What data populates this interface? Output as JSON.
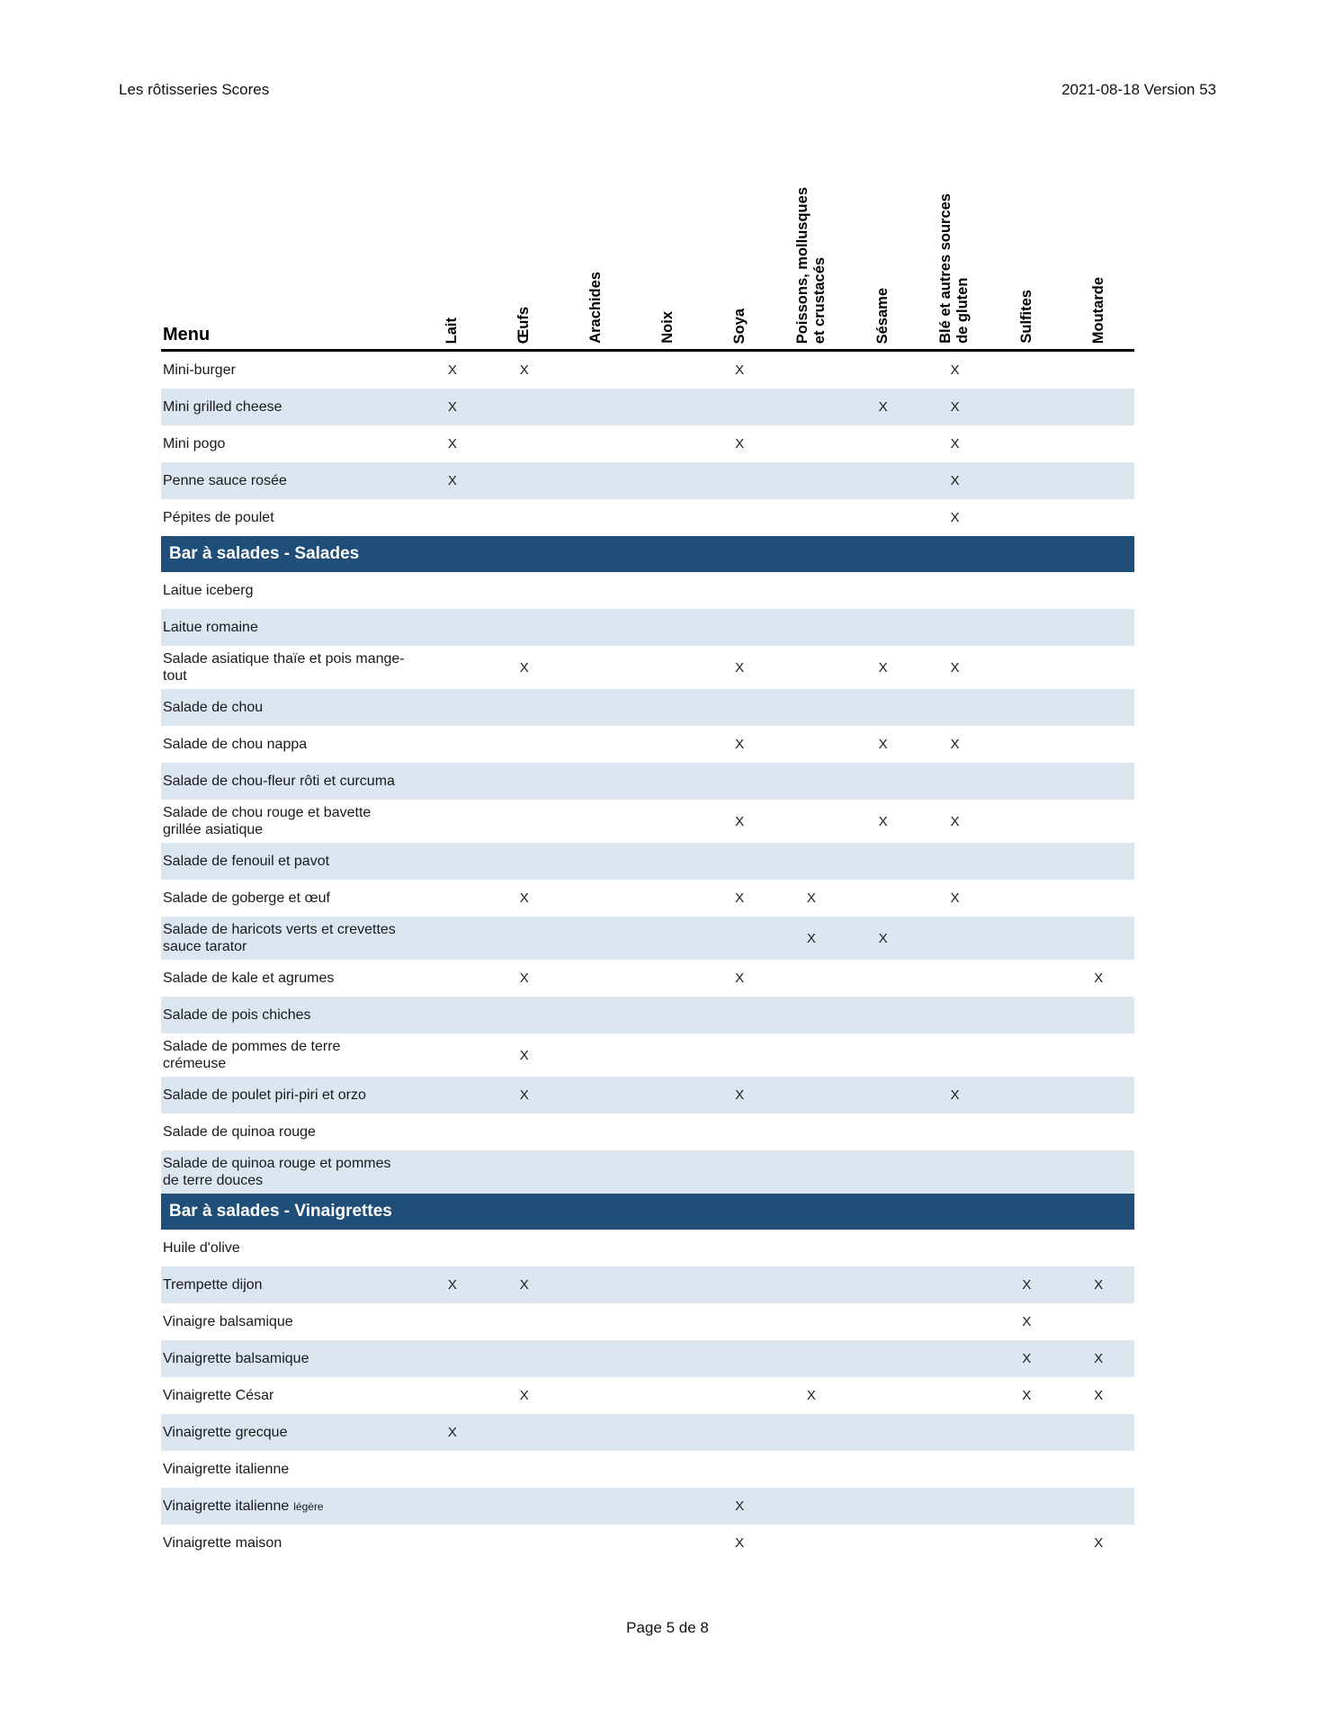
{
  "header": {
    "title": "Les rôtisseries Scores",
    "version": "2021-08-18 Version 53"
  },
  "footer": {
    "text": "Page 5 de 8"
  },
  "table": {
    "menu_label": "Menu",
    "mark": "X",
    "colors": {
      "section_header_bg": "#1F4E79",
      "section_header_text": "#FFFFFF",
      "row_shaded_bg": "#DCE6F1",
      "header_rule": "#000000"
    },
    "columns": [
      {
        "id": "lait",
        "label": "Lait"
      },
      {
        "id": "oeufs",
        "label": "Œufs"
      },
      {
        "id": "arachides",
        "label": "Arachides"
      },
      {
        "id": "noix",
        "label": "Noix"
      },
      {
        "id": "soya",
        "label": "Soya"
      },
      {
        "id": "poissons",
        "label": "Poissons, mollusques\net crustacés"
      },
      {
        "id": "sesame",
        "label": "Sésame"
      },
      {
        "id": "ble",
        "label": "Blé et autres sources\nde gluten"
      },
      {
        "id": "sulfites",
        "label": "Sulfites"
      },
      {
        "id": "moutarde",
        "label": "Moutarde"
      }
    ],
    "sections": [
      {
        "title": null,
        "rows": [
          {
            "label": "Mini-burger",
            "marks": {
              "lait": "X",
              "oeufs": "X",
              "soya": "X",
              "ble": "X"
            }
          },
          {
            "label": "Mini grilled cheese",
            "marks": {
              "lait": "X",
              "sesame": "X",
              "ble": "X"
            }
          },
          {
            "label": "Mini pogo",
            "marks": {
              "lait": "X",
              "soya": "X",
              "ble": "X"
            }
          },
          {
            "label": "Penne sauce rosée",
            "marks": {
              "lait": "X",
              "ble": "X"
            }
          },
          {
            "label": "Pépites de poulet",
            "marks": {
              "ble": "X"
            }
          }
        ]
      },
      {
        "title": "Bar à salades - Salades",
        "rows": [
          {
            "label": "Laitue iceberg",
            "marks": {}
          },
          {
            "label": "Laitue romaine",
            "marks": {}
          },
          {
            "label": "Salade asiatique thaïe et pois mange-tout",
            "marks": {
              "oeufs": "X",
              "soya": "X",
              "sesame": "X",
              "ble": "X"
            }
          },
          {
            "label": "Salade de chou",
            "marks": {}
          },
          {
            "label": "Salade de chou nappa",
            "marks": {
              "soya": "X",
              "sesame": "X",
              "ble": "X"
            }
          },
          {
            "label": "Salade de chou-fleur rôti et curcuma",
            "marks": {}
          },
          {
            "label": "Salade de chou rouge et bavette grillée asiatique",
            "marks": {
              "soya": "X",
              "sesame": "X",
              "ble": "X"
            }
          },
          {
            "label": "Salade de fenouil et pavot",
            "marks": {}
          },
          {
            "label": "Salade de goberge et œuf",
            "marks": {
              "oeufs": "X",
              "soya": "X",
              "poissons": "X",
              "ble": "X"
            }
          },
          {
            "label": "Salade de haricots verts et crevettes sauce tarator",
            "marks": {
              "poissons": "X",
              "sesame": "X"
            }
          },
          {
            "label": "Salade de kale et agrumes",
            "marks": {
              "oeufs": "X",
              "soya": "X",
              "moutarde": "X"
            }
          },
          {
            "label": "Salade de pois chiches",
            "marks": {}
          },
          {
            "label": "Salade de pommes de terre crémeuse",
            "marks": {
              "oeufs": "X"
            }
          },
          {
            "label": "Salade de poulet piri-piri et orzo",
            "marks": {
              "oeufs": "X",
              "soya": "X",
              "ble": "X"
            }
          },
          {
            "label": "Salade de quinoa rouge",
            "marks": {}
          },
          {
            "label": "Salade de quinoa rouge et pommes de terre douces",
            "marks": {}
          }
        ]
      },
      {
        "title": "Bar à salades - Vinaigrettes",
        "rows": [
          {
            "label": "Huile d'olive",
            "marks": {}
          },
          {
            "label": "Trempette dijon",
            "marks": {
              "lait": "X",
              "oeufs": "X",
              "sulfites": "X",
              "moutarde": "X"
            }
          },
          {
            "label": "Vinaigre balsamique",
            "marks": {
              "sulfites": "X"
            }
          },
          {
            "label": "Vinaigrette balsamique",
            "marks": {
              "sulfites": "X",
              "moutarde": "X"
            }
          },
          {
            "label": "Vinaigrette César",
            "marks": {
              "oeufs": "X",
              "poissons": "X",
              "sulfites": "X",
              "moutarde": "X"
            }
          },
          {
            "label": "Vinaigrette grecque",
            "marks": {
              "lait": "X"
            }
          },
          {
            "label": "Vinaigrette italienne",
            "marks": {}
          },
          {
            "label": "Vinaigrette italienne",
            "label_small": "légère",
            "marks": {
              "soya": "X"
            }
          },
          {
            "label": "Vinaigrette maison",
            "marks": {
              "soya": "X",
              "moutarde": "X"
            }
          }
        ]
      }
    ]
  }
}
